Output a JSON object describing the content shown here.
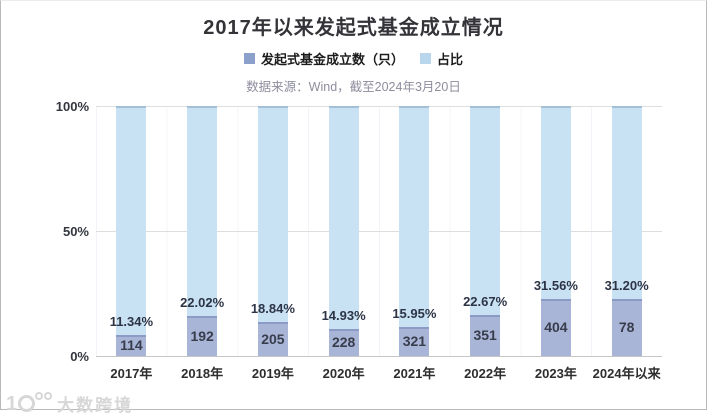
{
  "card": {
    "title": "2017年以来发起式基金成立情况",
    "source_note": "数据来源：Wind，截至2024年3月20日"
  },
  "legend": {
    "items": [
      {
        "label": "发起式基金成立数（只）",
        "color": "#8ba1cb"
      },
      {
        "label": "占比",
        "color": "#b9d7ec"
      }
    ]
  },
  "watermark": {
    "text": "大数跨境"
  },
  "colors": {
    "bar_light": "#c8e2f4",
    "bar_light_edge": "#a3c0d9",
    "bar_dark": "#a9b5d7",
    "bar_dark_edge": "#8c9ac6",
    "title_text": "#333338",
    "source_text": "#8e8d9d",
    "grid": "#dedede"
  },
  "chart_data": {
    "type": "bar",
    "subtype": "100-percent-stacked-columns",
    "title": "2017年以来发起式基金成立情况",
    "categories": [
      "2017年",
      "2018年",
      "2019年",
      "2020年",
      "2021年",
      "2022年",
      "2023年",
      "2024年以来"
    ],
    "series": [
      {
        "name": "发起式基金成立数（只）",
        "values": [
          114,
          192,
          205,
          228,
          321,
          351,
          404,
          78
        ]
      },
      {
        "name": "占比",
        "unit": "%",
        "values": [
          11.34,
          22.02,
          18.84,
          14.93,
          15.95,
          22.67,
          31.56,
          31.2
        ]
      }
    ],
    "pct_labels": [
      "11.34%",
      "22.02%",
      "18.84%",
      "14.93%",
      "15.95%",
      "22.67%",
      "31.56%",
      "31.20%"
    ],
    "count_labels": [
      "114",
      "192",
      "205",
      "228",
      "321",
      "351",
      "404",
      "78"
    ],
    "y_axis": {
      "ticks": [
        "0%",
        "50%",
        "100%"
      ],
      "range": [
        0,
        100
      ]
    },
    "xlabel": "",
    "ylabel": "",
    "grid": true,
    "legend_position": "top"
  }
}
